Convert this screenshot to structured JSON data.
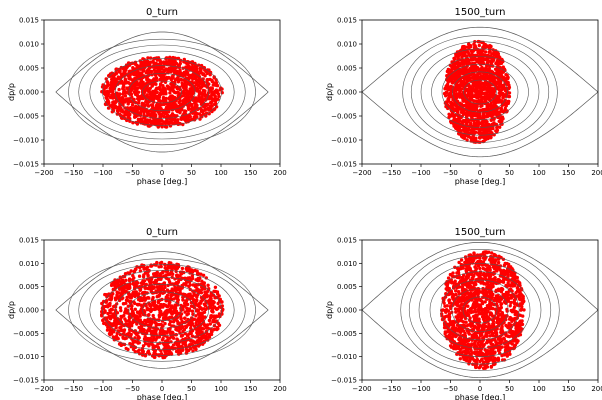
{
  "figure": {
    "background": "#ffffff",
    "particle_color": "#ff0000",
    "contour_color": "#555555"
  },
  "chart_data": [
    {
      "type": "scatter",
      "title": "0_turn",
      "xlabel": "phase [deg.]",
      "ylabel": "dp/p",
      "xlim": [
        -200,
        200
      ],
      "ylim": [
        -0.015,
        0.015
      ],
      "x_ticks": [
        "−200",
        "−150",
        "−100",
        "−50",
        "0",
        "50",
        "100",
        "150",
        "200"
      ],
      "y_ticks": [
        "0.015",
        "0.010",
        "0.005",
        "0.000",
        "−0.005",
        "−0.010",
        "−0.015"
      ],
      "distribution": {
        "center_phase": 0,
        "center_dpp": 0,
        "phase_halfwidth": 102,
        "dpp_halfwidth": 0.0073,
        "edge": "soft"
      },
      "separatrix": {
        "center": 0,
        "half_period": 180,
        "max_dpp": 0.0125
      },
      "contours": [
        0.0023,
        0.0039,
        0.0055,
        0.007,
        0.0085,
        0.0098,
        0.011
      ]
    },
    {
      "type": "scatter",
      "title": "1500_turn",
      "xlabel": "phase [deg.]",
      "ylabel": "dp/p",
      "xlim": [
        -200,
        200
      ],
      "ylim": [
        -0.015,
        0.015
      ],
      "x_ticks": [
        "−200",
        "−150",
        "−100",
        "−50",
        "0",
        "50",
        "100",
        "150",
        "200"
      ],
      "y_ticks": [
        "0.015",
        "0.010",
        "0.005",
        "0.000",
        "−0.005",
        "−0.010",
        "−0.015"
      ],
      "distribution": {
        "center_phase": -5,
        "center_dpp": 0,
        "phase_halfwidth": 55,
        "dpp_halfwidth": 0.0105,
        "edge": "soft"
      },
      "separatrix": {
        "center": 0,
        "half_period": 200,
        "max_dpp": 0.0135,
        "squeeze": 0.75
      },
      "contours": [
        0.0025,
        0.0042,
        0.0058,
        0.0074,
        0.009,
        0.0105,
        0.0118
      ]
    },
    {
      "type": "scatter",
      "title": "0_turn",
      "xlabel": "phase [deg.]",
      "ylabel": "dp/p",
      "xlim": [
        -200,
        200
      ],
      "ylim": [
        -0.015,
        0.015
      ],
      "x_ticks": [
        "−200",
        "−150",
        "−100",
        "−50",
        "0",
        "50",
        "100",
        "150",
        "200"
      ],
      "y_ticks": [
        "0.015",
        "0.010",
        "0.005",
        "0.000",
        "−0.005",
        "−0.010",
        "−0.015"
      ],
      "distribution": {
        "center_phase": 0,
        "center_dpp": 0,
        "phase_halfwidth": 103,
        "dpp_halfwidth": 0.0102,
        "edge": "soft"
      },
      "separatrix": {
        "center": 0,
        "half_period": 180,
        "max_dpp": 0.0125
      },
      "contours": [
        0.0023,
        0.0039,
        0.0055,
        0.007,
        0.0085,
        0.0098,
        0.011
      ]
    },
    {
      "type": "scatter",
      "title": "1500_turn",
      "xlabel": "phase [deg.]",
      "ylabel": "dp/p",
      "xlim": [
        -200,
        200
      ],
      "ylim": [
        -0.015,
        0.015
      ],
      "x_ticks": [
        "−200",
        "−150",
        "−100",
        "−50",
        "0",
        "50",
        "100",
        "150",
        "200"
      ],
      "y_ticks": [
        "0.015",
        "0.010",
        "0.005",
        "0.000",
        "−0.005",
        "−0.010",
        "−0.015"
      ],
      "distribution": {
        "center_phase": 5,
        "center_dpp": 0,
        "phase_halfwidth": 70,
        "dpp_halfwidth": 0.0125,
        "edge": "soft"
      },
      "separatrix": {
        "center": 0,
        "half_period": 200,
        "max_dpp": 0.0145,
        "squeeze": 0.75
      },
      "contours": [
        0.0028,
        0.0046,
        0.0064,
        0.0082,
        0.01,
        0.0116,
        0.013
      ]
    }
  ]
}
